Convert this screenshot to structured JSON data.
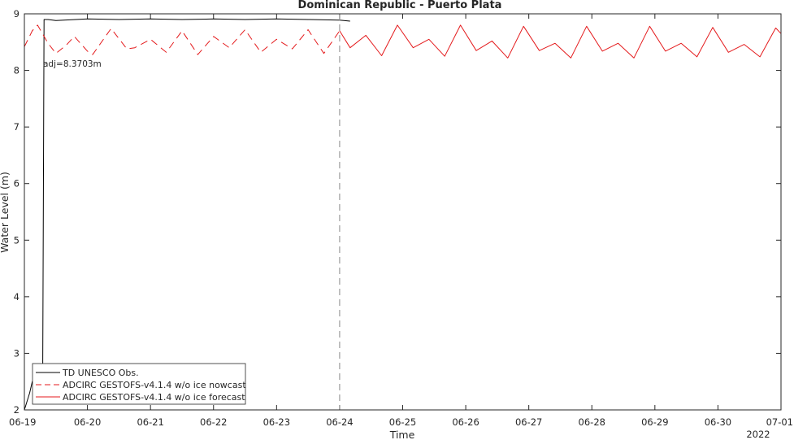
{
  "chart_data": {
    "type": "line",
    "title": "Dominican Republic - Puerto Plata",
    "xlabel": "Time",
    "ylabel": "Water Level (m)",
    "year_label": "2022",
    "x_ticks": [
      "06-19",
      "06-20",
      "06-21",
      "06-22",
      "06-23",
      "06-24",
      "06-25",
      "06-26",
      "06-27",
      "06-28",
      "06-29",
      "06-30",
      "07-01"
    ],
    "y_ticks": [
      2,
      3,
      4,
      5,
      6,
      7,
      8,
      9
    ],
    "xlim": [
      "2022-06-19 00:00",
      "2022-07-01 00:00"
    ],
    "ylim": [
      2,
      9
    ],
    "grid": false,
    "legend_position": "bottom-left",
    "annotation": "adj=8.3703m",
    "forecast_start": "2022-06-24 00:00",
    "series": [
      {
        "name": "TD UNESCO Obs.",
        "color": "#000000",
        "style": "solid",
        "points": [
          [
            "2022-06-19 00:00",
            2.0
          ],
          [
            "2022-06-19 02:00",
            2.3
          ],
          [
            "2022-06-19 03:00",
            2.5
          ],
          [
            "2022-06-19 05:00",
            2.6
          ],
          [
            "2022-06-19 07:00",
            2.8
          ],
          [
            "2022-06-19 07:30",
            8.9
          ],
          [
            "2022-06-19 09:00",
            8.9
          ],
          [
            "2022-06-19 12:00",
            8.88
          ],
          [
            "2022-06-20 00:00",
            8.91
          ],
          [
            "2022-06-20 12:00",
            8.9
          ],
          [
            "2022-06-21 00:00",
            8.91
          ],
          [
            "2022-06-21 12:00",
            8.9
          ],
          [
            "2022-06-22 00:00",
            8.91
          ],
          [
            "2022-06-22 12:00",
            8.9
          ],
          [
            "2022-06-23 00:00",
            8.91
          ],
          [
            "2022-06-23 12:00",
            8.9
          ],
          [
            "2022-06-24 00:00",
            8.89
          ],
          [
            "2022-06-24 04:00",
            8.87
          ]
        ]
      },
      {
        "name": "ADCIRC GESTOFS-v4.1.4 w/o ice nowcast",
        "color": "#e41a1c",
        "style": "dashed",
        "points": [
          [
            "2022-06-19 00:00",
            8.42
          ],
          [
            "2022-06-19 03:00",
            8.7
          ],
          [
            "2022-06-19 05:00",
            8.8
          ],
          [
            "2022-06-19 09:00",
            8.48
          ],
          [
            "2022-06-19 12:00",
            8.3
          ],
          [
            "2022-06-19 16:00",
            8.45
          ],
          [
            "2022-06-19 19:00",
            8.6
          ],
          [
            "2022-06-20 00:00",
            8.34
          ],
          [
            "2022-06-20 02:00",
            8.28
          ],
          [
            "2022-06-20 09:00",
            8.74
          ],
          [
            "2022-06-20 15:00",
            8.38
          ],
          [
            "2022-06-20 18:00",
            8.4
          ],
          [
            "2022-06-21 00:00",
            8.55
          ],
          [
            "2022-06-21 06:00",
            8.32
          ],
          [
            "2022-06-21 12:00",
            8.7
          ],
          [
            "2022-06-21 18:00",
            8.28
          ],
          [
            "2022-06-22 00:00",
            8.6
          ],
          [
            "2022-06-22 06:00",
            8.4
          ],
          [
            "2022-06-22 12:00",
            8.72
          ],
          [
            "2022-06-22 18:00",
            8.32
          ],
          [
            "2022-06-23 00:00",
            8.55
          ],
          [
            "2022-06-23 06:00",
            8.38
          ],
          [
            "2022-06-23 12:00",
            8.72
          ],
          [
            "2022-06-23 18:00",
            8.3
          ],
          [
            "2022-06-24 00:00",
            8.7
          ]
        ]
      },
      {
        "name": "ADCIRC GESTOFS-v4.1.4 w/o ice forecast",
        "color": "#e41a1c",
        "style": "solid",
        "points": [
          [
            "2022-06-24 00:00",
            8.7
          ],
          [
            "2022-06-24 04:00",
            8.4
          ],
          [
            "2022-06-24 10:00",
            8.62
          ],
          [
            "2022-06-24 16:00",
            8.26
          ],
          [
            "2022-06-24 22:00",
            8.8
          ],
          [
            "2022-06-25 04:00",
            8.4
          ],
          [
            "2022-06-25 10:00",
            8.55
          ],
          [
            "2022-06-25 16:00",
            8.25
          ],
          [
            "2022-06-25 22:00",
            8.8
          ],
          [
            "2022-06-26 04:00",
            8.35
          ],
          [
            "2022-06-26 10:00",
            8.52
          ],
          [
            "2022-06-26 16:00",
            8.22
          ],
          [
            "2022-06-26 22:00",
            8.78
          ],
          [
            "2022-06-27 04:00",
            8.35
          ],
          [
            "2022-06-27 10:00",
            8.48
          ],
          [
            "2022-06-27 16:00",
            8.22
          ],
          [
            "2022-06-27 22:00",
            8.78
          ],
          [
            "2022-06-28 04:00",
            8.34
          ],
          [
            "2022-06-28 10:00",
            8.48
          ],
          [
            "2022-06-28 16:00",
            8.22
          ],
          [
            "2022-06-28 22:00",
            8.78
          ],
          [
            "2022-06-29 04:00",
            8.34
          ],
          [
            "2022-06-29 10:00",
            8.48
          ],
          [
            "2022-06-29 16:00",
            8.24
          ],
          [
            "2022-06-29 22:00",
            8.76
          ],
          [
            "2022-06-30 04:00",
            8.32
          ],
          [
            "2022-06-30 10:00",
            8.46
          ],
          [
            "2022-06-30 16:00",
            8.24
          ],
          [
            "2022-06-30 22:00",
            8.75
          ],
          [
            "2022-07-01 00:00",
            8.65
          ]
        ]
      }
    ]
  }
}
